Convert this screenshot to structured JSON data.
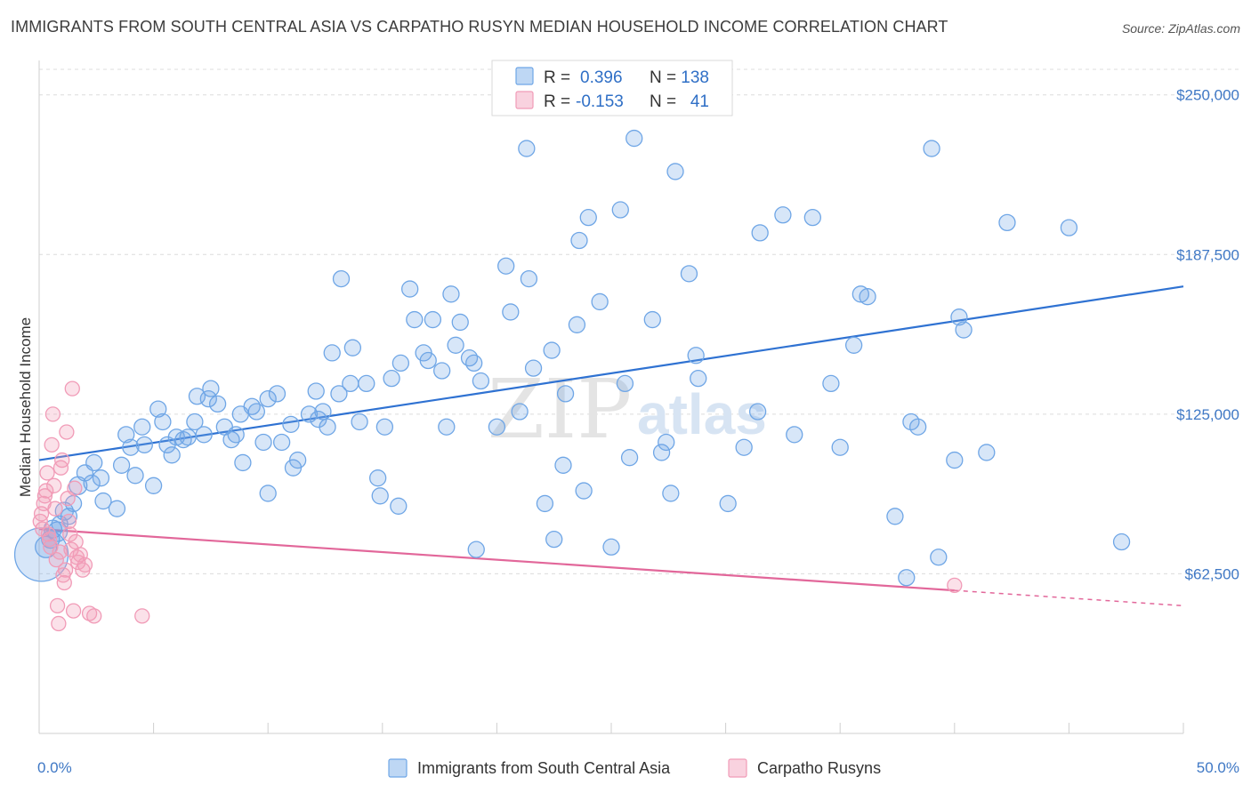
{
  "header": {
    "title": "IMMIGRANTS FROM SOUTH CENTRAL ASIA VS CARPATHO RUSYN MEDIAN HOUSEHOLD INCOME CORRELATION CHART",
    "source": "Source: ZipAtlas.com"
  },
  "watermark": {
    "zip": "ZIP",
    "atlas": "atlas"
  },
  "legend": {
    "rows": [
      {
        "r_label": "R =",
        "r_value": "0.396",
        "n_label": "N =",
        "n_value": "138",
        "color": "#6fa6e6"
      },
      {
        "r_label": "R =",
        "r_value": "-0.153",
        "n_label": "N =",
        "n_value": "41",
        "color": "#f19bb7"
      }
    ]
  },
  "chart_data": {
    "type": "scatter",
    "title": "IMMIGRANTS FROM SOUTH CENTRAL ASIA VS CARPATHO RUSYN MEDIAN HOUSEHOLD INCOME CORRELATION CHART",
    "xlabel": "",
    "ylabel": "Median Household Income",
    "xlim": [
      0,
      50
    ],
    "ylim": [
      0,
      260000
    ],
    "x_tick_labels": [
      "0.0%",
      "50.0%"
    ],
    "y_ticks": [
      62500,
      125000,
      187500,
      250000
    ],
    "y_tick_labels": [
      "$62,500",
      "$125,000",
      "$187,500",
      "$250,000"
    ],
    "grid": true,
    "legend_position": "top-center",
    "series": [
      {
        "name": "Immigrants from South Central Asia",
        "color": "#6fa6e6",
        "trend": {
          "x": [
            0,
            50
          ],
          "y": [
            107000,
            175000
          ]
        },
        "points": [
          [
            0.1,
            70000,
            30
          ],
          [
            0.3,
            73000,
            12
          ],
          [
            0.5,
            76000,
            10
          ],
          [
            0.6,
            80000,
            10
          ],
          [
            0.8,
            79000,
            11
          ],
          [
            0.9,
            82000,
            9
          ],
          [
            1.1,
            87000,
            10
          ],
          [
            1.3,
            85000,
            9
          ],
          [
            1.5,
            90000,
            9
          ],
          [
            1.7,
            97000,
            10
          ],
          [
            2.0,
            102000,
            9
          ],
          [
            2.3,
            98000,
            9
          ],
          [
            2.4,
            106000,
            9
          ],
          [
            2.7,
            100000,
            9
          ],
          [
            2.8,
            91000,
            9
          ],
          [
            3.4,
            88000,
            9
          ],
          [
            3.6,
            105000,
            9
          ],
          [
            3.8,
            117000,
            9
          ],
          [
            4.0,
            112000,
            9
          ],
          [
            4.2,
            101000,
            9
          ],
          [
            4.5,
            120000,
            9
          ],
          [
            4.6,
            113000,
            9
          ],
          [
            5.0,
            97000,
            9
          ],
          [
            5.2,
            127000,
            9
          ],
          [
            5.4,
            122000,
            9
          ],
          [
            5.6,
            113000,
            9
          ],
          [
            5.8,
            109000,
            9
          ],
          [
            6.0,
            116000,
            9
          ],
          [
            6.3,
            115000,
            9
          ],
          [
            6.5,
            116000,
            9
          ],
          [
            6.8,
            122000,
            9
          ],
          [
            6.9,
            132000,
            9
          ],
          [
            7.2,
            117000,
            9
          ],
          [
            7.4,
            131000,
            9
          ],
          [
            7.5,
            135000,
            9
          ],
          [
            7.8,
            129000,
            9
          ],
          [
            8.1,
            120000,
            9
          ],
          [
            8.4,
            115000,
            9
          ],
          [
            8.6,
            117000,
            9
          ],
          [
            8.8,
            125000,
            9
          ],
          [
            8.9,
            106000,
            9
          ],
          [
            9.3,
            128000,
            9
          ],
          [
            9.5,
            126000,
            9
          ],
          [
            9.8,
            114000,
            9
          ],
          [
            10.0,
            131000,
            9
          ],
          [
            10.0,
            94000,
            9
          ],
          [
            10.4,
            133000,
            9
          ],
          [
            10.6,
            114000,
            9
          ],
          [
            11.0,
            121000,
            9
          ],
          [
            11.1,
            104000,
            9
          ],
          [
            11.3,
            107000,
            9
          ],
          [
            11.8,
            125000,
            9
          ],
          [
            12.1,
            134000,
            9
          ],
          [
            12.2,
            123000,
            9
          ],
          [
            12.4,
            126000,
            9
          ],
          [
            12.6,
            120000,
            9
          ],
          [
            12.8,
            149000,
            9
          ],
          [
            13.1,
            133000,
            9
          ],
          [
            13.2,
            178000,
            9
          ],
          [
            13.6,
            137000,
            9
          ],
          [
            13.7,
            151000,
            9
          ],
          [
            14.0,
            122000,
            9
          ],
          [
            14.3,
            137000,
            9
          ],
          [
            14.8,
            100000,
            9
          ],
          [
            14.9,
            93000,
            9
          ],
          [
            15.1,
            120000,
            9
          ],
          [
            15.4,
            139000,
            9
          ],
          [
            15.7,
            89000,
            9
          ],
          [
            15.8,
            145000,
            9
          ],
          [
            16.2,
            174000,
            9
          ],
          [
            16.4,
            162000,
            9
          ],
          [
            16.8,
            149000,
            9
          ],
          [
            17.0,
            146000,
            9
          ],
          [
            17.2,
            162000,
            9
          ],
          [
            17.6,
            142000,
            9
          ],
          [
            17.8,
            120000,
            9
          ],
          [
            18.0,
            172000,
            9
          ],
          [
            18.2,
            152000,
            9
          ],
          [
            18.4,
            161000,
            9
          ],
          [
            18.8,
            147000,
            9
          ],
          [
            19.0,
            145000,
            9
          ],
          [
            19.1,
            72000,
            9
          ],
          [
            19.3,
            138000,
            9
          ],
          [
            20.0,
            120000,
            9
          ],
          [
            20.4,
            183000,
            9
          ],
          [
            20.6,
            165000,
            9
          ],
          [
            21.0,
            126000,
            9
          ],
          [
            21.3,
            229000,
            9
          ],
          [
            21.4,
            178000,
            9
          ],
          [
            21.6,
            143000,
            9
          ],
          [
            22.1,
            90000,
            9
          ],
          [
            22.4,
            150000,
            9
          ],
          [
            22.5,
            76000,
            9
          ],
          [
            22.9,
            105000,
            9
          ],
          [
            23.0,
            133000,
            9
          ],
          [
            23.5,
            160000,
            9
          ],
          [
            23.6,
            193000,
            9
          ],
          [
            23.8,
            95000,
            9
          ],
          [
            24.0,
            202000,
            9
          ],
          [
            24.5,
            169000,
            9
          ],
          [
            25.0,
            73000,
            9
          ],
          [
            25.4,
            205000,
            9
          ],
          [
            25.6,
            137000,
            9
          ],
          [
            25.8,
            108000,
            9
          ],
          [
            26.0,
            233000,
            9
          ],
          [
            26.8,
            162000,
            9
          ],
          [
            27.2,
            110000,
            9
          ],
          [
            27.4,
            114000,
            9
          ],
          [
            27.6,
            94000,
            9
          ],
          [
            27.8,
            220000,
            9
          ],
          [
            28.4,
            180000,
            9
          ],
          [
            28.7,
            148000,
            9
          ],
          [
            28.8,
            139000,
            9
          ],
          [
            30.1,
            90000,
            9
          ],
          [
            30.8,
            112000,
            9
          ],
          [
            31.4,
            126000,
            9
          ],
          [
            31.5,
            196000,
            9
          ],
          [
            32.5,
            203000,
            9
          ],
          [
            33.0,
            117000,
            9
          ],
          [
            33.8,
            202000,
            9
          ],
          [
            34.6,
            137000,
            9
          ],
          [
            35.6,
            152000,
            9
          ],
          [
            35.9,
            172000,
            9
          ],
          [
            36.2,
            171000,
            9
          ],
          [
            35.0,
            112000,
            9
          ],
          [
            37.4,
            85000,
            9
          ],
          [
            37.9,
            61000,
            9
          ],
          [
            38.1,
            122000,
            9
          ],
          [
            38.4,
            120000,
            9
          ],
          [
            39.0,
            229000,
            9
          ],
          [
            39.3,
            69000,
            9
          ],
          [
            40.2,
            163000,
            9
          ],
          [
            40.4,
            158000,
            9
          ],
          [
            40.0,
            107000,
            9
          ],
          [
            41.4,
            110000,
            9
          ],
          [
            42.3,
            200000,
            9
          ],
          [
            45.0,
            198000,
            9
          ],
          [
            47.3,
            75000,
            9
          ]
        ]
      },
      {
        "name": "Carpatho Rusyns",
        "color": "#f19bb7",
        "trend": {
          "x": [
            0,
            40
          ],
          "y": [
            80000,
            56000
          ],
          "dash_to": {
            "x": 50,
            "y": 50000
          }
        },
        "points": [
          [
            0.05,
            83000,
            8
          ],
          [
            0.1,
            86000,
            8
          ],
          [
            0.15,
            80000,
            8
          ],
          [
            0.2,
            90000,
            8
          ],
          [
            0.25,
            93000,
            8
          ],
          [
            0.3,
            95000,
            8
          ],
          [
            0.35,
            102000,
            8
          ],
          [
            0.4,
            78000,
            8
          ],
          [
            0.45,
            76000,
            8
          ],
          [
            0.5,
            73000,
            8
          ],
          [
            0.55,
            113000,
            8
          ],
          [
            0.6,
            125000,
            8
          ],
          [
            0.65,
            97000,
            8
          ],
          [
            0.7,
            88000,
            8
          ],
          [
            0.75,
            68000,
            8
          ],
          [
            0.8,
            50000,
            8
          ],
          [
            0.85,
            43000,
            8
          ],
          [
            0.9,
            71000,
            8
          ],
          [
            0.95,
            104000,
            8
          ],
          [
            1.0,
            107000,
            8
          ],
          [
            1.05,
            62000,
            8
          ],
          [
            1.1,
            59000,
            8
          ],
          [
            1.15,
            64000,
            8
          ],
          [
            1.2,
            118000,
            8
          ],
          [
            1.25,
            92000,
            8
          ],
          [
            1.3,
            83000,
            8
          ],
          [
            1.35,
            78000,
            8
          ],
          [
            1.4,
            72000,
            8
          ],
          [
            1.45,
            135000,
            8
          ],
          [
            1.5,
            48000,
            8
          ],
          [
            1.55,
            96000,
            8
          ],
          [
            1.6,
            75000,
            8
          ],
          [
            1.65,
            69000,
            8
          ],
          [
            1.7,
            67000,
            8
          ],
          [
            1.8,
            70000,
            8
          ],
          [
            1.9,
            64000,
            8
          ],
          [
            2.0,
            66000,
            8
          ],
          [
            2.2,
            47000,
            8
          ],
          [
            2.4,
            46000,
            8
          ],
          [
            4.5,
            46000,
            8
          ],
          [
            40.0,
            58000,
            8
          ]
        ]
      }
    ]
  },
  "bottom_legend": {
    "items": [
      {
        "label": "Immigrants from South Central Asia",
        "color": "#6fa6e6"
      },
      {
        "label": "Carpatho Rusyns",
        "color": "#f19bb7"
      }
    ]
  }
}
